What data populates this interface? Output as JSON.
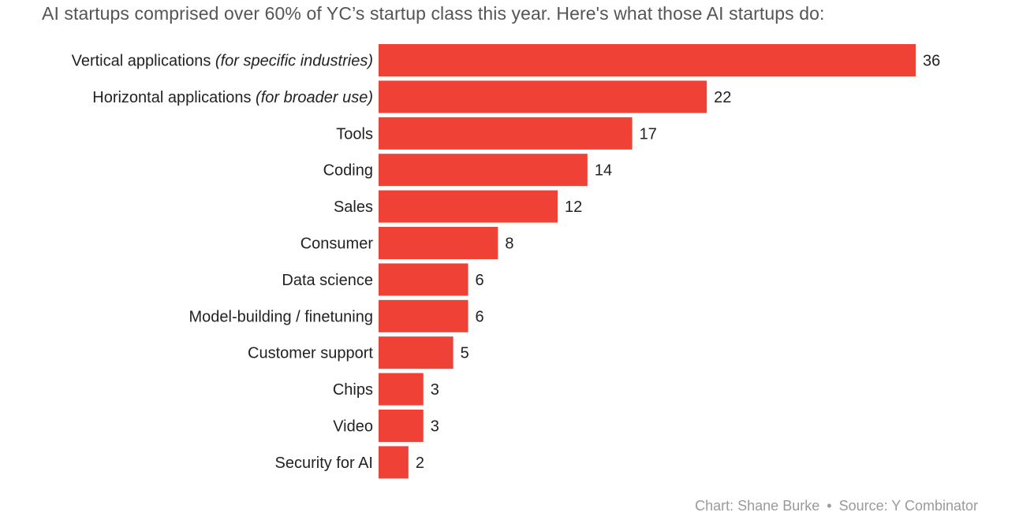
{
  "title": "AI startups comprised over 60% of YC’s startup class this year. Here's what those AI startups do:",
  "colors": {
    "bar": "#ef4136",
    "bar_edge": "#ffffff",
    "text": "#222222",
    "credit": "#9a9a9a"
  },
  "credit": {
    "chart": "Chart: Shane Burke",
    "separator": "•",
    "source": "Source: Y Combinator"
  },
  "chart_data": {
    "type": "bar",
    "orientation": "horizontal",
    "title": "AI startups comprised over 60% of YC’s startup class this year. Here's what those AI startups do:",
    "categories": [
      {
        "main": "Vertical applications",
        "note": "(for specific industries)"
      },
      {
        "main": "Horizontal applications",
        "note": "(for broader use)"
      },
      {
        "main": "Tools",
        "note": ""
      },
      {
        "main": "Coding",
        "note": ""
      },
      {
        "main": "Sales",
        "note": ""
      },
      {
        "main": "Consumer",
        "note": ""
      },
      {
        "main": "Data science",
        "note": ""
      },
      {
        "main": "Model-building / finetuning",
        "note": ""
      },
      {
        "main": "Customer support",
        "note": ""
      },
      {
        "main": "Chips",
        "note": ""
      },
      {
        "main": "Video",
        "note": ""
      },
      {
        "main": "Security for AI",
        "note": ""
      }
    ],
    "values": [
      36,
      22,
      17,
      14,
      12,
      8,
      6,
      6,
      5,
      3,
      3,
      2
    ],
    "xlim": [
      0,
      36
    ],
    "grid": false,
    "data_labels": true
  }
}
